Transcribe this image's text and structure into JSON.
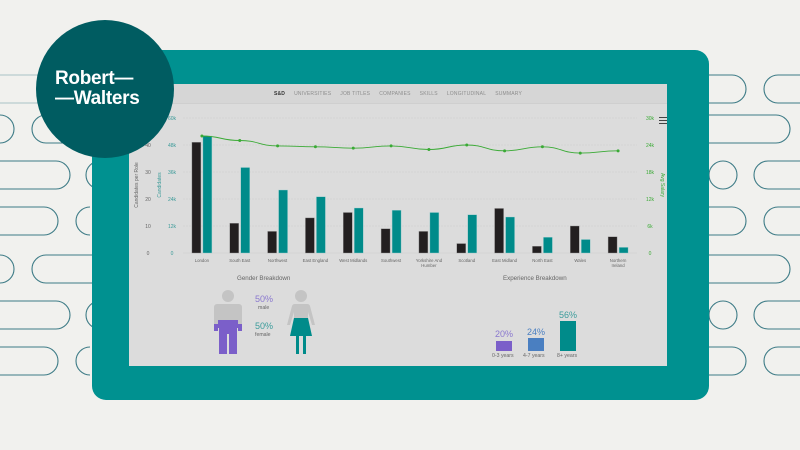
{
  "brand": {
    "line1": "Robert—",
    "line2": "—Walters",
    "circle_color": "#005c61"
  },
  "frame": {
    "color": "#009190"
  },
  "nav": {
    "tabs": [
      {
        "label": "S&D",
        "active": true
      },
      {
        "label": "UNIVERSITIES",
        "active": false
      },
      {
        "label": "JOB TITLES",
        "active": false
      },
      {
        "label": "COMPANIES",
        "active": false
      },
      {
        "label": "SKILLS",
        "active": false
      },
      {
        "label": "LONGITUDINAL",
        "active": false
      },
      {
        "label": "SUMMARY",
        "active": false
      }
    ]
  },
  "menu_icon": "hamburger-icon",
  "chart_data": [
    {
      "type": "bar",
      "title": "",
      "categories": [
        "London",
        "South East",
        "Northwest",
        "East England",
        "West Midlands",
        "Southwest",
        "Yorkshire And Humber",
        "Scotland",
        "East Midland",
        "North East",
        "Wales",
        "Northern Ireland"
      ],
      "series": [
        {
          "name": "Candidates per Role",
          "type": "bar",
          "axis": "left-1",
          "color": "#231f20",
          "values": [
            41,
            11,
            8,
            13,
            15,
            9,
            8,
            3.5,
            16.5,
            2.5,
            10,
            6
          ]
        },
        {
          "name": "Candidates",
          "type": "bar",
          "axis": "left-2",
          "color": "#008b8a",
          "values": [
            52000,
            38000,
            28000,
            25000,
            20000,
            19000,
            18000,
            17000,
            16000,
            7000,
            6000,
            2500
          ]
        },
        {
          "name": "Avg Salary",
          "type": "line",
          "axis": "right",
          "color": "#3aaa35",
          "values": [
            26000,
            25000,
            23800,
            23600,
            23300,
            23800,
            23000,
            24000,
            22700,
            23600,
            22200,
            22700
          ]
        }
      ],
      "axes": {
        "left_1": {
          "label": "Candidates per Role",
          "ticks": [
            "0",
            "10",
            "20",
            "30",
            "40"
          ],
          "range": [
            0,
            50
          ]
        },
        "left_2": {
          "label": "Candidates",
          "ticks": [
            "0",
            "12k",
            "24k",
            "36k",
            "48k",
            "60k"
          ],
          "range": [
            0,
            60000
          ]
        },
        "right": {
          "label": "Avg Salary",
          "ticks": [
            "0",
            "6k",
            "12k",
            "18k",
            "24k",
            "30k"
          ],
          "range": [
            0,
            30000
          ]
        }
      },
      "grid": true
    },
    {
      "type": "bar",
      "title": "Experience Breakdown",
      "categories": [
        "0-3 years",
        "4-7 years",
        "8+ years"
      ],
      "values": [
        20,
        24,
        56
      ],
      "colors": [
        "#7b5fc9",
        "#4a7fc1",
        "#008b8a"
      ],
      "value_labels": [
        "20%",
        "24%",
        "56%"
      ]
    },
    {
      "type": "pie",
      "title": "Gender Breakdown",
      "categories": [
        "male",
        "female"
      ],
      "values": [
        50,
        50
      ],
      "value_labels": [
        "50%",
        "50%"
      ],
      "colors": [
        "#7b5fc9",
        "#008b8a"
      ]
    }
  ],
  "gender": {
    "title": "Gender Breakdown",
    "male_pct": "50%",
    "male_label": "male",
    "female_pct": "50%",
    "female_label": "female"
  },
  "experience": {
    "title": "Experience Breakdown",
    "items": [
      {
        "pct": "20%",
        "label": "0-3 years"
      },
      {
        "pct": "24%",
        "label": "4-7 years"
      },
      {
        "pct": "56%",
        "label": "8+ years"
      }
    ]
  }
}
